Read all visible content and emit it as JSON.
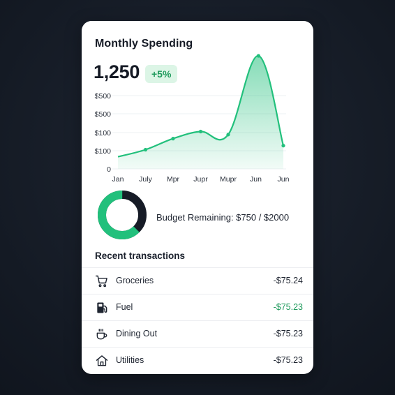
{
  "card": {
    "title": "Monthly Spending",
    "total_value": "1,250",
    "change_badge": "+5%"
  },
  "colors": {
    "accent": "#22c07c",
    "accent_light": "#dcf5e6",
    "positive_text": "#1f9a5c",
    "donut_track": "#161b26",
    "background": "#141a24"
  },
  "chart_data": {
    "type": "area",
    "categories": [
      "Jan",
      "July",
      "Mpr",
      "Jupr",
      "Mupr",
      "Jun",
      "Jun"
    ],
    "y_tick_labels": [
      "0",
      "$100",
      "$100",
      "$500",
      "$500"
    ],
    "x": [
      0,
      1,
      2,
      3,
      4,
      5.1,
      6
    ],
    "values": [
      60,
      95,
      150,
      185,
      170,
      560,
      115
    ],
    "ylim": [
      0,
      560
    ],
    "grid": true,
    "title": "",
    "xlabel": "",
    "ylabel": ""
  },
  "budget": {
    "label": "Budget Remaining: $750 / $2000",
    "remaining_fraction": 0.375
  },
  "transactions": {
    "title": "Recent transactions",
    "items": [
      {
        "name": "Groceries",
        "amount": "-$75.24",
        "icon": "shopping-cart-icon",
        "positive": false
      },
      {
        "name": "Fuel",
        "amount": "-$75.23",
        "icon": "fuel-pump-icon",
        "positive": true
      },
      {
        "name": "Dining Out",
        "amount": "-$75.23",
        "icon": "coffee-cup-icon",
        "positive": false
      },
      {
        "name": "Utilities",
        "amount": "-$75.23",
        "icon": "home-icon",
        "positive": false
      }
    ]
  }
}
